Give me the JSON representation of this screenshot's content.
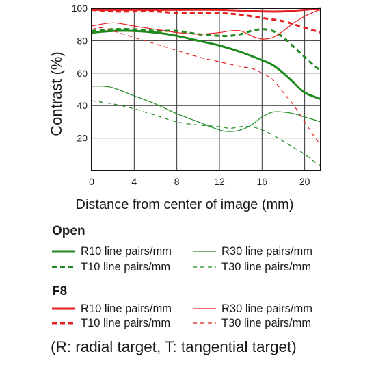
{
  "chart_data": {
    "type": "line",
    "xlabel": "Distance from center of image (mm)",
    "ylabel": "Contrast (%)",
    "xlim": [
      0,
      21.5
    ],
    "ylim": [
      0,
      100
    ],
    "x_ticks": [
      0,
      4,
      8,
      12,
      16,
      20
    ],
    "y_ticks": [
      20,
      40,
      60,
      80,
      100
    ],
    "grid": true,
    "colors": {
      "open": "#1e8a1e",
      "f8": "#e51f1f"
    },
    "series": [
      {
        "name": "R10 line pairs/mm",
        "group": "Open",
        "style": "thick-solid",
        "x": [
          0,
          2,
          4,
          6,
          8,
          10,
          12,
          14,
          16,
          17,
          18,
          19,
          20,
          21.5
        ],
        "y": [
          85,
          86,
          86,
          85,
          83,
          80,
          77,
          73,
          68,
          65,
          60,
          54,
          48,
          44
        ]
      },
      {
        "name": "T10 line pairs/mm",
        "group": "Open",
        "style": "thick-dashed",
        "x": [
          0,
          2,
          4,
          6,
          8,
          10,
          12,
          13,
          14,
          15,
          16,
          17,
          18,
          19,
          20,
          21,
          21.5
        ],
        "y": [
          86,
          87,
          87,
          86,
          86,
          84,
          83,
          83,
          84,
          86,
          87,
          86,
          82,
          76,
          70,
          64,
          62
        ]
      },
      {
        "name": "R30 line pairs/mm",
        "group": "Open",
        "style": "thin-solid",
        "x": [
          0,
          1,
          2,
          4,
          6,
          8,
          10,
          12,
          13,
          14,
          15,
          16,
          17,
          18,
          19,
          20,
          21,
          21.5
        ],
        "y": [
          52,
          52,
          51,
          46,
          41,
          35,
          30,
          25,
          24,
          25,
          28,
          33,
          36,
          36,
          35,
          33,
          31,
          30
        ]
      },
      {
        "name": "T30 line pairs/mm",
        "group": "Open",
        "style": "thin-dashed",
        "x": [
          0,
          2,
          4,
          6,
          8,
          10,
          12,
          13,
          14,
          15,
          16,
          17,
          18,
          19,
          20,
          21,
          21.5
        ],
        "y": [
          43,
          41,
          38,
          34,
          30,
          28,
          27,
          26,
          27,
          27,
          25,
          22,
          18,
          14,
          10,
          5,
          3
        ]
      },
      {
        "name": "R10 line pairs/mm",
        "group": "F8",
        "style": "thick-solid",
        "x": [
          0,
          4,
          8,
          12,
          16,
          18,
          20,
          21.5
        ],
        "y": [
          99,
          99,
          99,
          99,
          98,
          98,
          99,
          100
        ]
      },
      {
        "name": "T10 line pairs/mm",
        "group": "F8",
        "style": "thick-dashed",
        "x": [
          0,
          2,
          4,
          6,
          8,
          10,
          12,
          14,
          16,
          18,
          19,
          20,
          21,
          21.5
        ],
        "y": [
          99,
          98,
          98,
          98,
          97,
          97,
          97,
          96,
          94,
          92,
          90,
          88,
          86,
          85
        ]
      },
      {
        "name": "R30 line pairs/mm",
        "group": "F8",
        "style": "thin-solid",
        "x": [
          0,
          2,
          4,
          6,
          8,
          10,
          12,
          13,
          14,
          15,
          16,
          17,
          18,
          19,
          20,
          21,
          21.5
        ],
        "y": [
          89,
          91,
          89,
          87,
          85,
          84,
          85,
          86,
          86,
          83,
          81,
          82,
          86,
          91,
          95,
          98,
          99
        ]
      },
      {
        "name": "T30 line pairs/mm",
        "group": "F8",
        "style": "thin-dashed",
        "x": [
          0,
          1,
          2,
          4,
          6,
          8,
          10,
          12,
          14,
          15,
          16,
          17,
          18,
          19,
          20,
          21,
          21.5
        ],
        "y": [
          87,
          88,
          86,
          82,
          78,
          74,
          70,
          67,
          64,
          63,
          60,
          56,
          48,
          40,
          30,
          20,
          16
        ]
      }
    ]
  },
  "legend": {
    "groups": [
      {
        "title": "Open",
        "items": [
          {
            "label": "R10 line pairs/mm",
            "series_index": 0
          },
          {
            "label": "R30 line pairs/mm",
            "series_index": 2
          },
          {
            "label": "T10 line pairs/mm",
            "series_index": 1
          },
          {
            "label": "T30 line pairs/mm",
            "series_index": 3
          }
        ]
      },
      {
        "title": "F8",
        "items": [
          {
            "label": "R10 line pairs/mm",
            "series_index": 4
          },
          {
            "label": "R30 line pairs/mm",
            "series_index": 6
          },
          {
            "label": "T10 line pairs/mm",
            "series_index": 5
          },
          {
            "label": "T30 line pairs/mm",
            "series_index": 7
          }
        ]
      }
    ]
  },
  "footnote": "(R: radial target, T: tangential target)"
}
